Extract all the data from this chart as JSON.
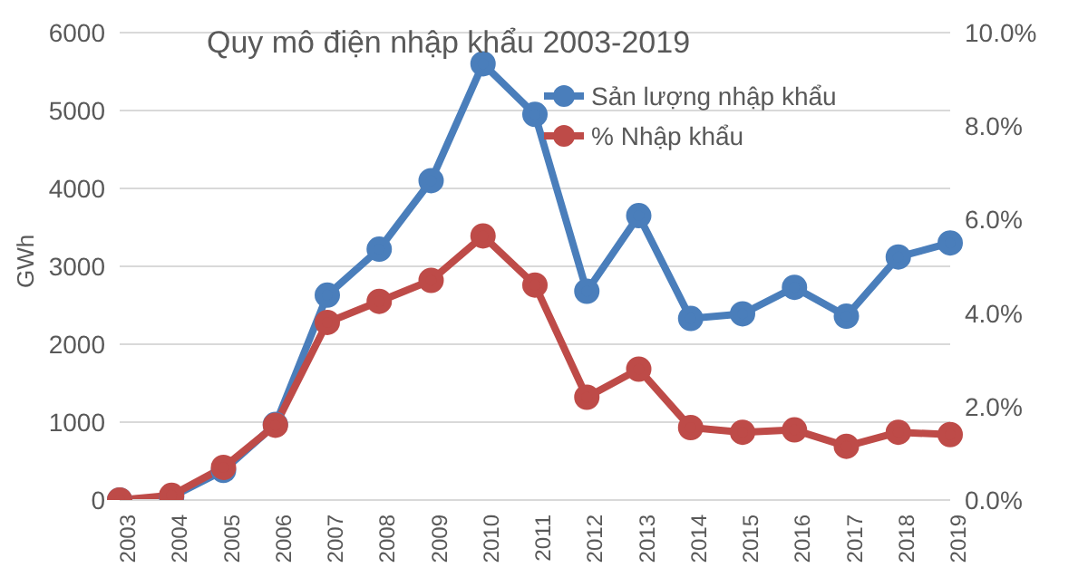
{
  "chart_data": {
    "type": "line",
    "title": "Quy mô điện nhập khẩu 2003-2019",
    "ylabel": "GWh",
    "categories": [
      "2003",
      "2004",
      "2005",
      "2006",
      "2007",
      "2008",
      "2009",
      "2010",
      "2011",
      "2012",
      "2013",
      "2014",
      "2015",
      "2016",
      "2017",
      "2018",
      "2019"
    ],
    "series": [
      {
        "name": "Sản lượng nhập khẩu",
        "color": "#4a7ebb",
        "values": [
          0,
          40,
          380,
          970,
          2630,
          3220,
          4100,
          5600,
          4950,
          2680,
          3650,
          2330,
          2390,
          2730,
          2360,
          3120,
          3300
        ]
      },
      {
        "name": "% Nhập khẩu",
        "color": "#be4b48",
        "axis": "y2",
        "values": [
          0,
          0.1,
          0.7,
          1.6,
          3.8,
          4.25,
          4.7,
          5.65,
          4.6,
          2.2,
          2.8,
          1.55,
          1.45,
          1.5,
          1.15,
          1.45,
          1.4
        ]
      }
    ],
    "ylim": [
      0,
      6000
    ],
    "yticks": [
      0,
      1000,
      2000,
      3000,
      4000,
      5000,
      6000
    ],
    "y2lim": [
      0,
      10
    ],
    "y2ticks": [
      {
        "value": 0,
        "label": "0.0%"
      },
      {
        "value": 2,
        "label": "2.0%"
      },
      {
        "value": 4,
        "label": "4.0%"
      },
      {
        "value": 6,
        "label": "6.0%"
      },
      {
        "value": 8,
        "label": "8.0%"
      },
      {
        "value": 10,
        "label": "10.0%"
      }
    ],
    "grid": "y",
    "legend": "top right",
    "marker": "circle",
    "line_style": "solid"
  }
}
